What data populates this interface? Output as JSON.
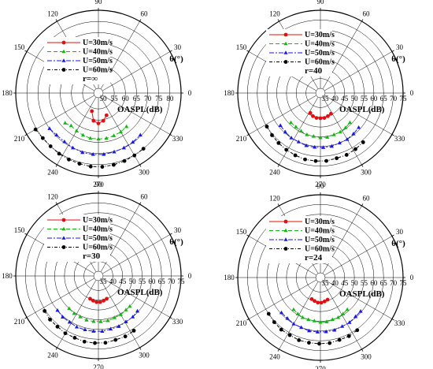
{
  "colors": {
    "s30": "#e01010",
    "s40": "#16b516",
    "s50": "#1818e0",
    "s60": "#000000"
  },
  "chart_data": [
    {
      "type": "polar-line",
      "r_label": "r=∞",
      "radial_label": "OASPL(dB)",
      "angle_label": "θ(°)",
      "r_ticks": [
        "50",
        "55",
        "60",
        "65",
        "70",
        "75",
        "80"
      ],
      "r_range": [
        50,
        85
      ],
      "angle_ticks": [
        "0",
        "30",
        "60",
        "90",
        "120",
        "150",
        "180",
        "210",
        "240",
        "270",
        "300",
        "330"
      ],
      "series": [
        {
          "name": "U=30m/s",
          "angles": [
            250,
            260,
            270,
            280,
            290
          ],
          "values": [
            56.5,
            60.5,
            61.5,
            60.5,
            58.5
          ]
        },
        {
          "name": "U=40m/s",
          "angles": [
            222,
            230,
            240,
            250,
            260,
            270,
            280,
            290,
            300,
            310
          ],
          "values": [
            68,
            67,
            67.5,
            68,
            68.5,
            68.5,
            68.5,
            68.2,
            68,
            67.5
          ]
        },
        {
          "name": "U=50m/s",
          "angles": [
            216,
            225,
            235,
            245,
            255,
            265,
            275,
            285,
            295,
            305,
            315
          ],
          "values": [
            75,
            74.5,
            74.5,
            75,
            75.5,
            75.5,
            75.5,
            75.2,
            75,
            74.8,
            74.5
          ]
        },
        {
          "name": "U=60m/s",
          "angles": [
            210,
            219,
            228,
            237,
            246,
            255,
            264,
            273,
            282,
            291,
            300,
            309
          ],
          "values": [
            80.5,
            80,
            80,
            80.3,
            80.5,
            80.7,
            81,
            81,
            80.8,
            80.5,
            80.2,
            80
          ]
        }
      ]
    },
    {
      "type": "polar-line",
      "r_label": "r=40",
      "radial_label": "OASPL(dB)",
      "angle_label": "θ(°)",
      "r_ticks": [
        "35",
        "40",
        "45",
        "50",
        "55",
        "60",
        "65",
        "70",
        "75"
      ],
      "r_range": [
        35,
        75
      ],
      "angle_ticks": [
        "0",
        "30",
        "60",
        "90",
        "120",
        "150",
        "180",
        "210",
        "240",
        "270",
        "300",
        "330"
      ],
      "series": [
        {
          "name": "U=30m/s",
          "angles": [
            243,
            252,
            261,
            270,
            279,
            288,
            297
          ],
          "values": [
            44,
            45,
            45.5,
            45.5,
            45.5,
            45,
            44.5
          ]
        },
        {
          "name": "U=40m/s",
          "angles": [
            225,
            234,
            243,
            252,
            261,
            270,
            279,
            288,
            297,
            306,
            315
          ],
          "values": [
            54,
            54,
            54.5,
            55,
            55,
            55.5,
            55.5,
            55,
            55,
            54.5,
            54
          ]
        },
        {
          "name": "U=50m/s",
          "angles": [
            219,
            228,
            237,
            246,
            255,
            264,
            273,
            282,
            291,
            300,
            309,
            318
          ],
          "values": [
            59,
            59.5,
            60,
            60,
            60.5,
            60.5,
            60.5,
            60.5,
            60,
            60,
            59.5,
            59
          ]
        },
        {
          "name": "U=60m/s",
          "angles": [
            212,
            221,
            230,
            239,
            248,
            257,
            266,
            275,
            284,
            293,
            302,
            311
          ],
          "values": [
            65,
            65.5,
            66,
            66.5,
            67,
            67.5,
            67.5,
            67.5,
            67,
            67,
            66.5,
            66
          ]
        }
      ]
    },
    {
      "type": "polar-line",
      "r_label": "r=30",
      "radial_label": "OASPL(dB)",
      "angle_label": "θ(°)",
      "r_ticks": [
        "35",
        "40",
        "45",
        "50",
        "55",
        "60",
        "65",
        "70",
        "75"
      ],
      "r_range": [
        35,
        75
      ],
      "angle_ticks": [
        "0",
        "30",
        "60",
        "90",
        "120",
        "150",
        "180",
        "210",
        "240",
        "270",
        "300",
        "330"
      ],
      "series": [
        {
          "name": "U=30m/s",
          "angles": [
            250,
            258,
            266,
            274,
            282,
            290
          ],
          "values": [
            45,
            45.5,
            46,
            46,
            45.5,
            45
          ]
        },
        {
          "name": "U=40m/s",
          "angles": [
            228,
            237,
            246,
            255,
            264,
            273,
            282,
            291,
            300,
            309,
            316
          ],
          "values": [
            55,
            55.5,
            55.5,
            56,
            56,
            56,
            56,
            55.5,
            55.5,
            55,
            55
          ]
        },
        {
          "name": "U=50m/s",
          "angles": [
            220,
            229,
            238,
            247,
            256,
            265,
            274,
            283,
            292,
            301,
            310,
            318
          ],
          "values": [
            60,
            60.5,
            60.5,
            61,
            61,
            61,
            61,
            60.5,
            60.5,
            60,
            60,
            59.5
          ]
        },
        {
          "name": "U=60m/s",
          "angles": [
            213,
            222,
            231,
            240,
            249,
            258,
            267,
            276,
            285,
            294,
            303
          ],
          "values": [
            65.5,
            66,
            66,
            66.5,
            66.5,
            67,
            67,
            67,
            66.5,
            66.5,
            66
          ]
        }
      ]
    },
    {
      "type": "polar-line",
      "r_label": "r=24",
      "radial_label": "OASPL(dB)",
      "angle_label": "θ(°)",
      "r_ticks": [
        "35",
        "40",
        "45",
        "50",
        "55",
        "60",
        "65",
        "70",
        "75"
      ],
      "r_range": [
        35,
        75
      ],
      "angle_ticks": [
        "0",
        "30",
        "60",
        "90",
        "120",
        "150",
        "180",
        "210",
        "240",
        "270",
        "300",
        "330"
      ],
      "series": [
        {
          "name": "U=30m/s",
          "angles": [
            248,
            256,
            264,
            272,
            280,
            288
          ],
          "values": [
            44.5,
            45,
            45.5,
            45.5,
            45,
            44.5
          ]
        },
        {
          "name": "U=40m/s",
          "angles": [
            230,
            238,
            246,
            254,
            262,
            270,
            278,
            286,
            294,
            302,
            310
          ],
          "values": [
            54,
            54.5,
            55,
            55,
            55,
            55.5,
            55.5,
            55,
            55,
            54.5,
            54
          ]
        },
        {
          "name": "U=50m/s",
          "angles": [
            222,
            231,
            240,
            249,
            258,
            267,
            276,
            285,
            294,
            303,
            312,
            320
          ],
          "values": [
            59.5,
            59.5,
            60,
            60,
            60.5,
            60.5,
            60.5,
            60.5,
            60,
            60,
            59.5,
            59.5
          ]
        },
        {
          "name": "U=60m/s",
          "angles": [
            215,
            224,
            233,
            242,
            251,
            260,
            269,
            278,
            287,
            296,
            305
          ],
          "values": [
            65,
            65.5,
            66,
            66,
            66.5,
            66.5,
            66.5,
            66.5,
            66,
            66,
            65.5
          ]
        }
      ]
    }
  ]
}
